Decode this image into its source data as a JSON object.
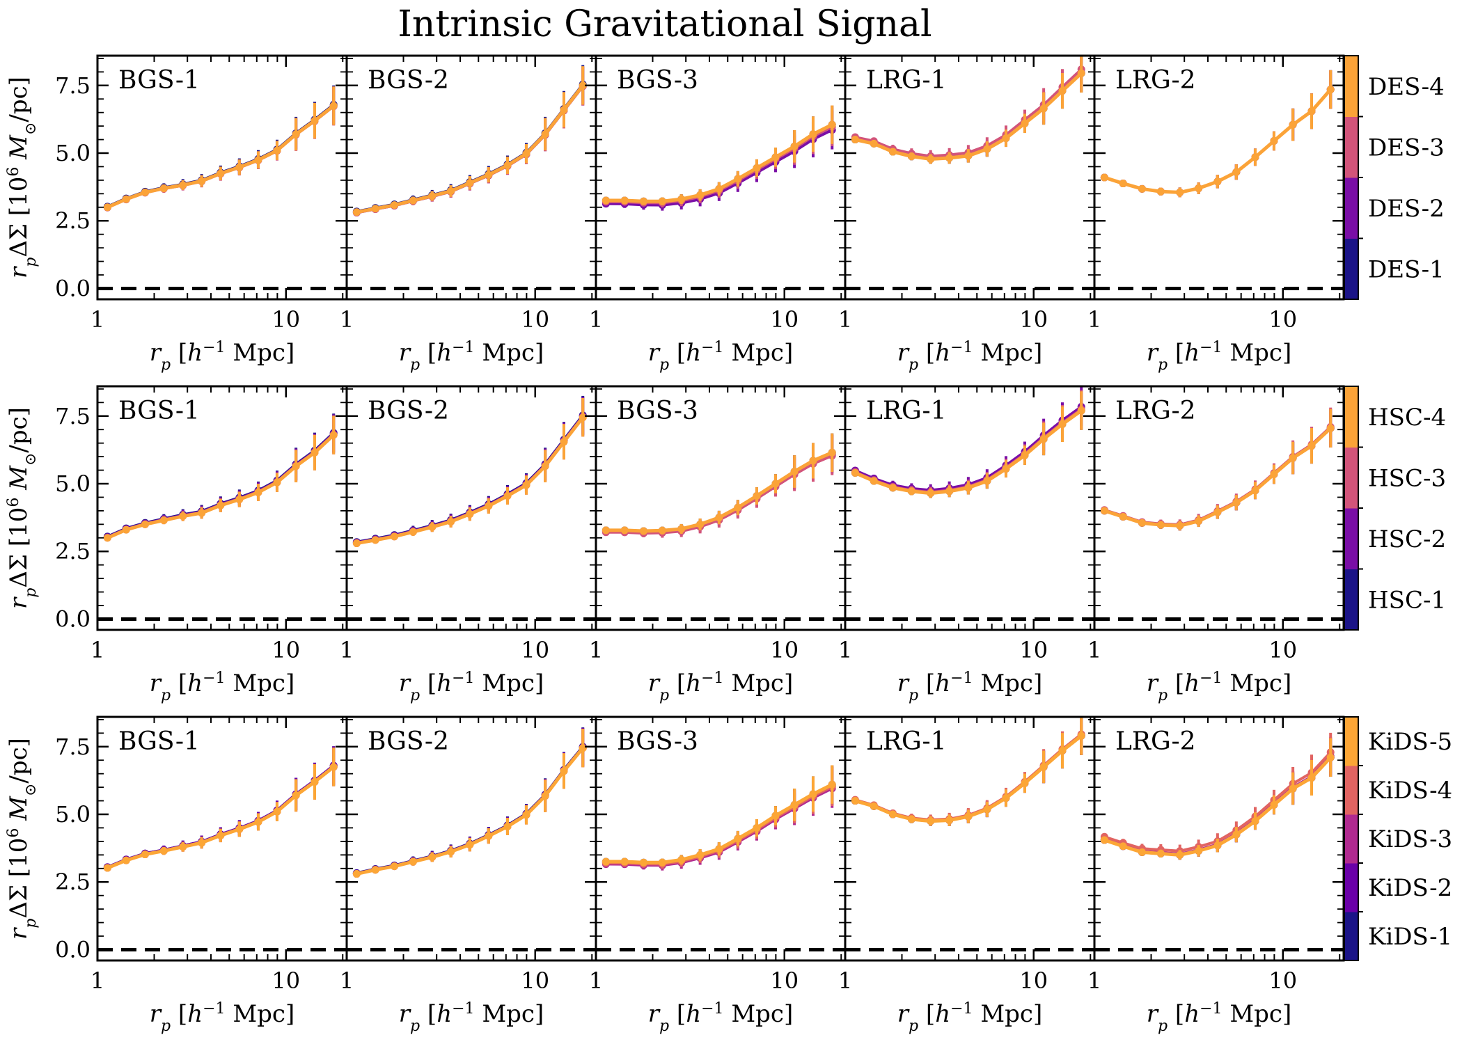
{
  "title": "Intrinsic Gravitational Signal",
  "chart_data": {
    "type": "line",
    "xscale": "log",
    "xlim": [
      1,
      21
    ],
    "ylim": [
      -0.4,
      8.6
    ],
    "x_ticks": [
      1,
      10
    ],
    "y_ticks": [
      0.0,
      2.5,
      5.0,
      7.5
    ],
    "x_ticks_text": [
      "1",
      "10"
    ],
    "y_ticks_text": [
      "0.0",
      "2.5",
      "5.0",
      "7.5"
    ],
    "xlabel": "r_p [h^-1 Mpc]",
    "ylabel": "r_p ΔΣ [10^6 M_⊙/pc]",
    "reference_line": {
      "y": 0,
      "style": "dashed"
    },
    "x": [
      1.13,
      1.42,
      1.79,
      2.25,
      2.84,
      3.57,
      4.5,
      5.66,
      7.13,
      8.97,
      11.3,
      14.2,
      17.9
    ],
    "x_lrg2": [
      1.13,
      1.42,
      1.79,
      2.25,
      2.84,
      3.57,
      4.5,
      5.66,
      7.13,
      8.97,
      11.3,
      14.2,
      17.9
    ],
    "rows": [
      {
        "survey": "DES",
        "colorbar": [
          {
            "label": "DES-1",
            "color": "#1b1488"
          },
          {
            "label": "DES-2",
            "color": "#7a0ea6"
          },
          {
            "label": "DES-3",
            "color": "#d2547a"
          },
          {
            "label": "DES-4",
            "color": "#fba338"
          }
        ],
        "panels": [
          {
            "label": "BGS-1",
            "base": [
              3.0,
              3.3,
              3.55,
              3.7,
              3.82,
              3.97,
              4.25,
              4.48,
              4.75,
              5.1,
              5.7,
              6.2,
              6.75
            ],
            "deltas": [
              0.04,
              0.0,
              -0.02,
              0.0
            ]
          },
          {
            "label": "BGS-2",
            "base": [
              2.82,
              2.95,
              3.08,
              3.25,
              3.42,
              3.6,
              3.9,
              4.2,
              4.55,
              4.98,
              5.7,
              6.6,
              7.5
            ],
            "deltas": [
              0.04,
              -0.03,
              -0.03,
              0.0
            ]
          },
          {
            "label": "BGS-3",
            "base": [
              3.25,
              3.25,
              3.22,
              3.22,
              3.3,
              3.45,
              3.68,
              4.05,
              4.45,
              4.85,
              5.25,
              5.7,
              6.05
            ],
            "deltas": [
              0.0,
              -0.2,
              -0.08,
              0.0
            ]
          },
          {
            "label": "LRG-1",
            "base": [
              5.5,
              5.35,
              5.05,
              4.88,
              4.78,
              4.82,
              4.9,
              5.15,
              5.55,
              6.1,
              6.65,
              7.3,
              7.95
            ],
            "deltas": [
              0.0,
              0.02,
              0.15,
              0.0
            ]
          },
          {
            "label": "LRG-2",
            "base": [
              4.1,
              3.88,
              3.68,
              3.58,
              3.55,
              3.7,
              3.95,
              4.3,
              4.85,
              5.45,
              6.05,
              6.55,
              7.35
            ],
            "deltas": [
              0.0,
              0.0,
              0.0,
              0.0
            ]
          }
        ]
      },
      {
        "survey": "HSC",
        "colorbar": [
          {
            "label": "HSC-1",
            "color": "#1b1488"
          },
          {
            "label": "HSC-2",
            "color": "#7a0ea6"
          },
          {
            "label": "HSC-3",
            "color": "#d2547a"
          },
          {
            "label": "HSC-4",
            "color": "#fba338"
          }
        ],
        "panels": [
          {
            "label": "BGS-1",
            "base": [
              3.0,
              3.3,
              3.5,
              3.65,
              3.8,
              3.92,
              4.2,
              4.42,
              4.68,
              5.05,
              5.65,
              6.15,
              6.8
            ],
            "deltas": [
              0.08,
              0.05,
              0.0,
              0.0
            ]
          },
          {
            "label": "BGS-2",
            "base": [
              2.8,
              2.92,
              3.05,
              3.22,
              3.4,
              3.6,
              3.88,
              4.18,
              4.55,
              4.95,
              5.65,
              6.55,
              7.45
            ],
            "deltas": [
              0.08,
              0.05,
              0.0,
              0.0
            ]
          },
          {
            "label": "BGS-3",
            "base": [
              3.28,
              3.28,
              3.25,
              3.27,
              3.33,
              3.5,
              3.75,
              4.12,
              4.55,
              5.0,
              5.45,
              5.85,
              6.15
            ],
            "deltas": [
              0.0,
              -0.06,
              -0.12,
              0.0
            ]
          },
          {
            "label": "LRG-1",
            "base": [
              5.4,
              5.1,
              4.85,
              4.72,
              4.65,
              4.72,
              4.85,
              5.1,
              5.55,
              6.05,
              6.65,
              7.2,
              7.7
            ],
            "deltas": [
              0.0,
              0.15,
              0.05,
              0.0
            ]
          },
          {
            "label": "LRG-2",
            "base": [
              4.0,
              3.78,
              3.55,
              3.48,
              3.45,
              3.62,
              3.95,
              4.3,
              4.75,
              5.35,
              5.95,
              6.4,
              7.05
            ],
            "deltas": [
              0.0,
              0.0,
              0.05,
              0.0
            ]
          }
        ]
      },
      {
        "survey": "KiDS",
        "colorbar": [
          {
            "label": "KiDS-1",
            "color": "#1b1488"
          },
          {
            "label": "KiDS-2",
            "color": "#6a00a8"
          },
          {
            "label": "KiDS-3",
            "color": "#b12a90"
          },
          {
            "label": "KiDS-4",
            "color": "#e16462"
          },
          {
            "label": "KiDS-5",
            "color": "#fca636"
          }
        ],
        "panels": [
          {
            "label": "BGS-1",
            "base": [
              3.02,
              3.3,
              3.52,
              3.65,
              3.8,
              3.95,
              4.22,
              4.45,
              4.72,
              5.1,
              5.7,
              6.2,
              6.75
            ],
            "deltas": [
              0.05,
              0.05,
              0.0,
              0.0,
              0.0
            ]
          },
          {
            "label": "BGS-2",
            "base": [
              2.8,
              2.95,
              3.08,
              3.25,
              3.42,
              3.62,
              3.88,
              4.2,
              4.55,
              4.98,
              5.68,
              6.6,
              7.45
            ],
            "deltas": [
              0.05,
              0.03,
              0.0,
              0.0,
              0.0
            ]
          },
          {
            "label": "BGS-3",
            "base": [
              3.25,
              3.25,
              3.22,
              3.22,
              3.32,
              3.5,
              3.72,
              4.1,
              4.5,
              4.95,
              5.35,
              5.75,
              6.1
            ],
            "deltas": [
              0.0,
              -0.05,
              -0.15,
              -0.08,
              0.0
            ]
          },
          {
            "label": "LRG-1",
            "base": [
              5.5,
              5.3,
              5.0,
              4.82,
              4.75,
              4.78,
              4.92,
              5.18,
              5.6,
              6.15,
              6.75,
              7.35,
              7.9
            ],
            "deltas": [
              0.0,
              0.0,
              0.03,
              0.06,
              0.0
            ]
          },
          {
            "label": "LRG-2",
            "base": [
              4.05,
              3.82,
              3.6,
              3.55,
              3.5,
              3.65,
              3.85,
              4.25,
              4.75,
              5.35,
              5.95,
              6.35,
              7.1
            ],
            "deltas": [
              0.0,
              0.0,
              0.05,
              0.2,
              0.0
            ]
          }
        ]
      }
    ]
  }
}
